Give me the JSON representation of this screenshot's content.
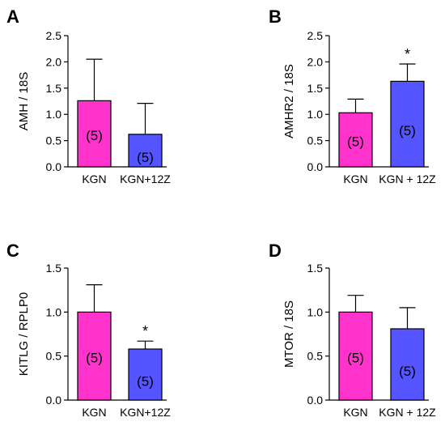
{
  "colors": {
    "kgn": "#ff33cc",
    "kgn_12z": "#5555ff",
    "axis": "#000000"
  },
  "chart_data": [
    {
      "panel": "A",
      "type": "bar",
      "categories": [
        "KGN",
        "KGN+12Z"
      ],
      "values": [
        1.26,
        0.62
      ],
      "errors": [
        0.79,
        0.59
      ],
      "n_labels": [
        "(5)",
        "(5)"
      ],
      "significance": [
        "",
        ""
      ],
      "ylabel": "AMH / 18S",
      "ylim": [
        0,
        2.5
      ],
      "yticks": [
        0.0,
        0.5,
        1.0,
        1.5,
        2.0,
        2.5
      ],
      "ytick_labels": [
        "0.0",
        "0.5",
        "1.0",
        "1.5",
        "2.0",
        "2.5"
      ]
    },
    {
      "panel": "B",
      "type": "bar",
      "categories": [
        "KGN",
        "KGN + 12Z"
      ],
      "values": [
        1.03,
        1.63
      ],
      "errors": [
        0.26,
        0.33
      ],
      "n_labels": [
        "(5)",
        "(5)"
      ],
      "significance": [
        "",
        "*"
      ],
      "ylabel": "AMHR2 / 18S",
      "ylim": [
        0,
        2.5
      ],
      "yticks": [
        0.0,
        0.5,
        1.0,
        1.5,
        2.0,
        2.5
      ],
      "ytick_labels": [
        "0.0",
        "0.5",
        "1.0",
        "1.5",
        "2.0",
        "2.5"
      ]
    },
    {
      "panel": "C",
      "type": "bar",
      "categories": [
        "KGN",
        "KGN+12Z"
      ],
      "values": [
        1.0,
        0.58
      ],
      "errors": [
        0.31,
        0.09
      ],
      "n_labels": [
        "(5)",
        "(5)"
      ],
      "significance": [
        "",
        "*"
      ],
      "ylabel": "KITLG / RPLP0",
      "ylim": [
        0,
        1.5
      ],
      "yticks": [
        0.0,
        0.5,
        1.0,
        1.5
      ],
      "ytick_labels": [
        "0.0",
        "0.5",
        "1.0",
        "1.5"
      ]
    },
    {
      "panel": "D",
      "type": "bar",
      "categories": [
        "KGN",
        "KGN + 12Z"
      ],
      "values": [
        1.0,
        0.81
      ],
      "errors": [
        0.19,
        0.24
      ],
      "n_labels": [
        "(5)",
        "(5)"
      ],
      "significance": [
        "",
        ""
      ],
      "ylabel": "MTOR / 18S",
      "ylim": [
        0,
        1.5
      ],
      "yticks": [
        0.0,
        0.5,
        1.0,
        1.5
      ],
      "ytick_labels": [
        "0.0",
        "0.5",
        "1.0",
        "1.5"
      ]
    }
  ]
}
